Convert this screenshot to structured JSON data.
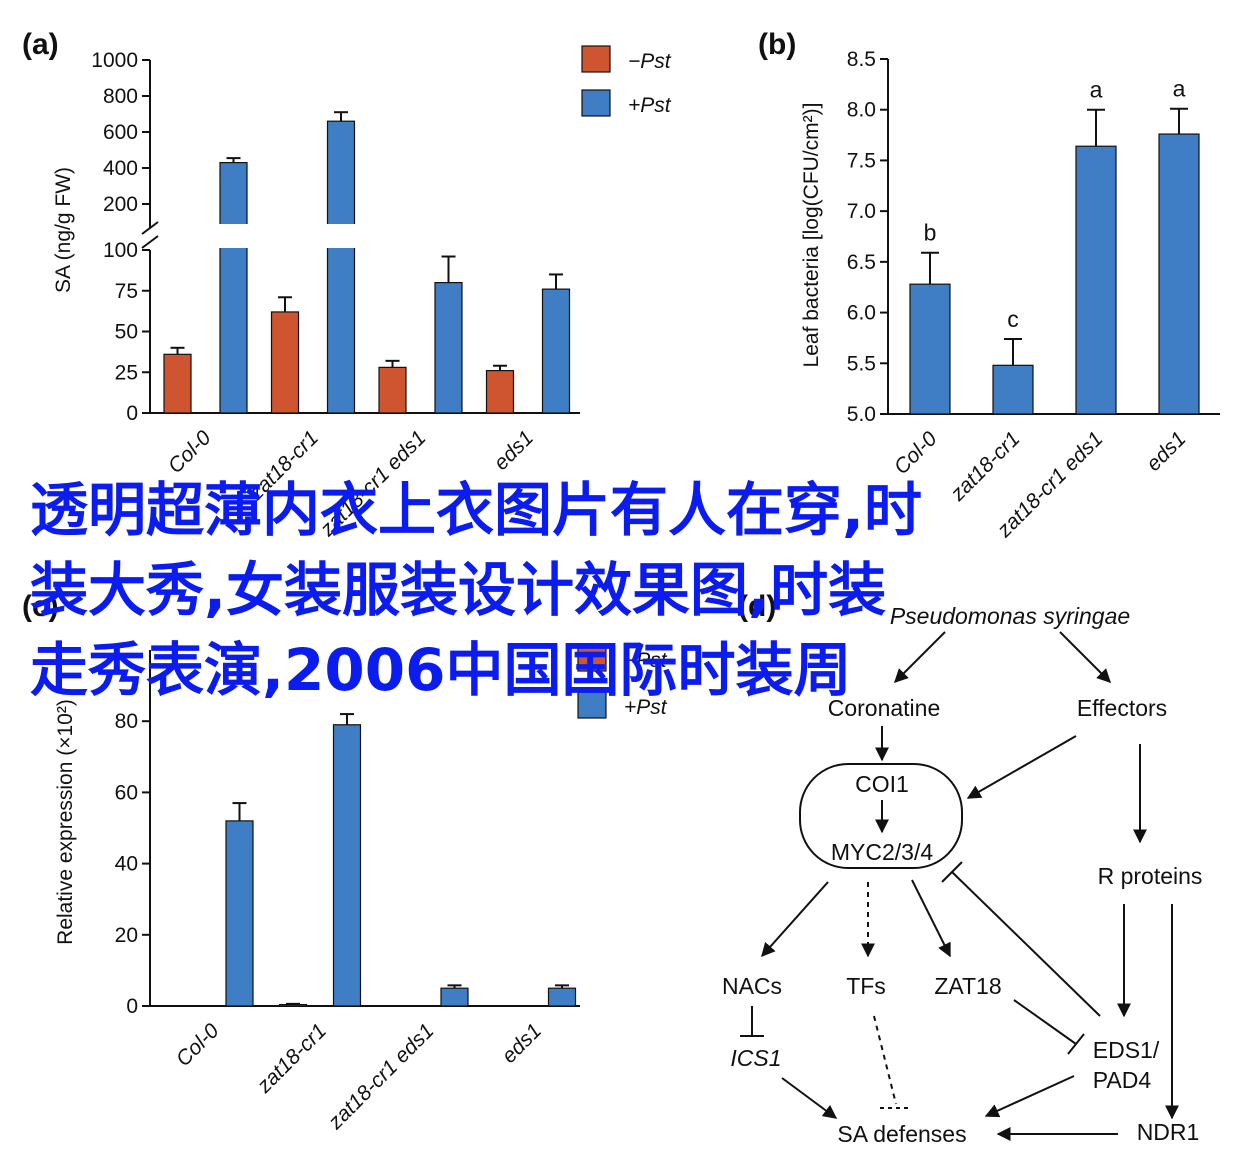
{
  "chart_data": [
    {
      "panel": "(a)",
      "type": "bar",
      "ylabel": "SA (ng/g FW)",
      "categories": [
        "Col-0",
        "zat18-cr1",
        "zat18-cr1 eds1",
        "eds1"
      ],
      "series": [
        {
          "name": "−Pst",
          "values": [
            36,
            62,
            28,
            26
          ],
          "errors": [
            4,
            9,
            4,
            3
          ]
        },
        {
          "name": "+Pst",
          "values": [
            430,
            660,
            80,
            76
          ],
          "errors": [
            25,
            50,
            16,
            9
          ]
        }
      ],
      "y_ticks_lower": [
        "0",
        "25",
        "50",
        "75",
        "100"
      ],
      "y_ticks_upper": [
        "200",
        "400",
        "600",
        "800",
        "1000"
      ],
      "ylim_lower": [
        0,
        100
      ],
      "ylim_upper": [
        100,
        1000
      ],
      "axis_break": true,
      "legend_position": "top-right"
    },
    {
      "panel": "(b)",
      "type": "bar",
      "ylabel": "Leaf bacteria [log(CFU/cm²)]",
      "categories": [
        "Col-0",
        "zat18-cr1",
        "zat18-cr1 eds1",
        "eds1"
      ],
      "series": [
        {
          "values": [
            6.28,
            5.48,
            7.64,
            7.76
          ],
          "errors": [
            0.31,
            0.26,
            0.36,
            0.25
          ]
        }
      ],
      "significance_letters": [
        "b",
        "c",
        "a",
        "a"
      ],
      "y_ticks": [
        "5.0",
        "5.5",
        "6.0",
        "6.5",
        "7.0",
        "7.5",
        "8.0",
        "8.5"
      ],
      "ylim": [
        5.0,
        8.5
      ]
    },
    {
      "panel": "(c)",
      "type": "bar",
      "ylabel": "Relative expression (×10²)",
      "categories": [
        "Col-0",
        "zat18-cr1",
        "zat18-cr1 eds1",
        "eds1"
      ],
      "series": [
        {
          "name": "−Pst",
          "values": [
            0,
            0.4,
            0,
            0
          ],
          "errors": [
            0,
            0.2,
            0,
            0
          ]
        },
        {
          "name": "+Pst",
          "values": [
            52,
            79,
            5,
            5
          ],
          "errors": [
            5,
            3,
            0.8,
            0.8
          ]
        }
      ],
      "y_ticks": [
        "0",
        "20",
        "40",
        "60",
        "80"
      ],
      "ylim": [
        0,
        100
      ],
      "legend_position": "top-right"
    }
  ],
  "diagram": {
    "panel": "(d)",
    "nodes": {
      "pseudomonas": "Pseudomonas syringae",
      "coronatine": "Coronatine",
      "effectors": "Effectors",
      "coi1": "COI1",
      "myc": "MYC2/3/4",
      "r_proteins": "R proteins",
      "nacs": "NACs",
      "tfs": "TFs",
      "zat18": "ZAT18",
      "ics1": "ICS1",
      "eds1_line1": "EDS1/",
      "eds1_line2": "PAD4",
      "sa_defenses": "SA defenses",
      "ndr1": "NDR1"
    }
  },
  "colors": {
    "minus_pst": "#cf5430",
    "plus_pst": "#3f7ec4",
    "overlay_text": "#0b1cf0"
  },
  "overlay_lines": [
    "透明超薄内衣上衣图片有人在穿,时",
    "装大秀,女装服装设计效果图,时装",
    "走秀表演,2006中国国际时装周"
  ]
}
